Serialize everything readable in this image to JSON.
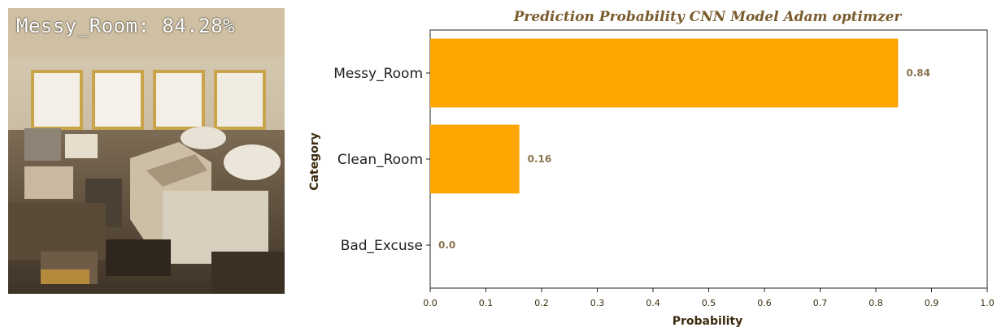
{
  "photo": {
    "overlay_label": "Messy_Room: 84.28%",
    "text_color": "#ffffff"
  },
  "chart_data": {
    "type": "bar",
    "orientation": "horizontal",
    "title": "Prediction Probability CNN Model Adam optimzer",
    "xlabel": "Probability",
    "ylabel": "Category",
    "categories": [
      "Messy_Room",
      "Clean_Room",
      "Bad_Excuse"
    ],
    "values": [
      0.84,
      0.16,
      0.0
    ],
    "value_labels": [
      "0.84",
      "0.16",
      "0.0"
    ],
    "xlim": [
      0,
      1.0
    ],
    "xticks": [
      "0.0",
      "0.1",
      "0.2",
      "0.3",
      "0.4",
      "0.5",
      "0.6",
      "0.7",
      "0.8",
      "0.9",
      "1.0"
    ],
    "grid": false,
    "bar_color": "#ffa500",
    "title_color": "#7a5c2e",
    "label_color": "#3d2b10",
    "value_label_color": "#8a7350"
  }
}
